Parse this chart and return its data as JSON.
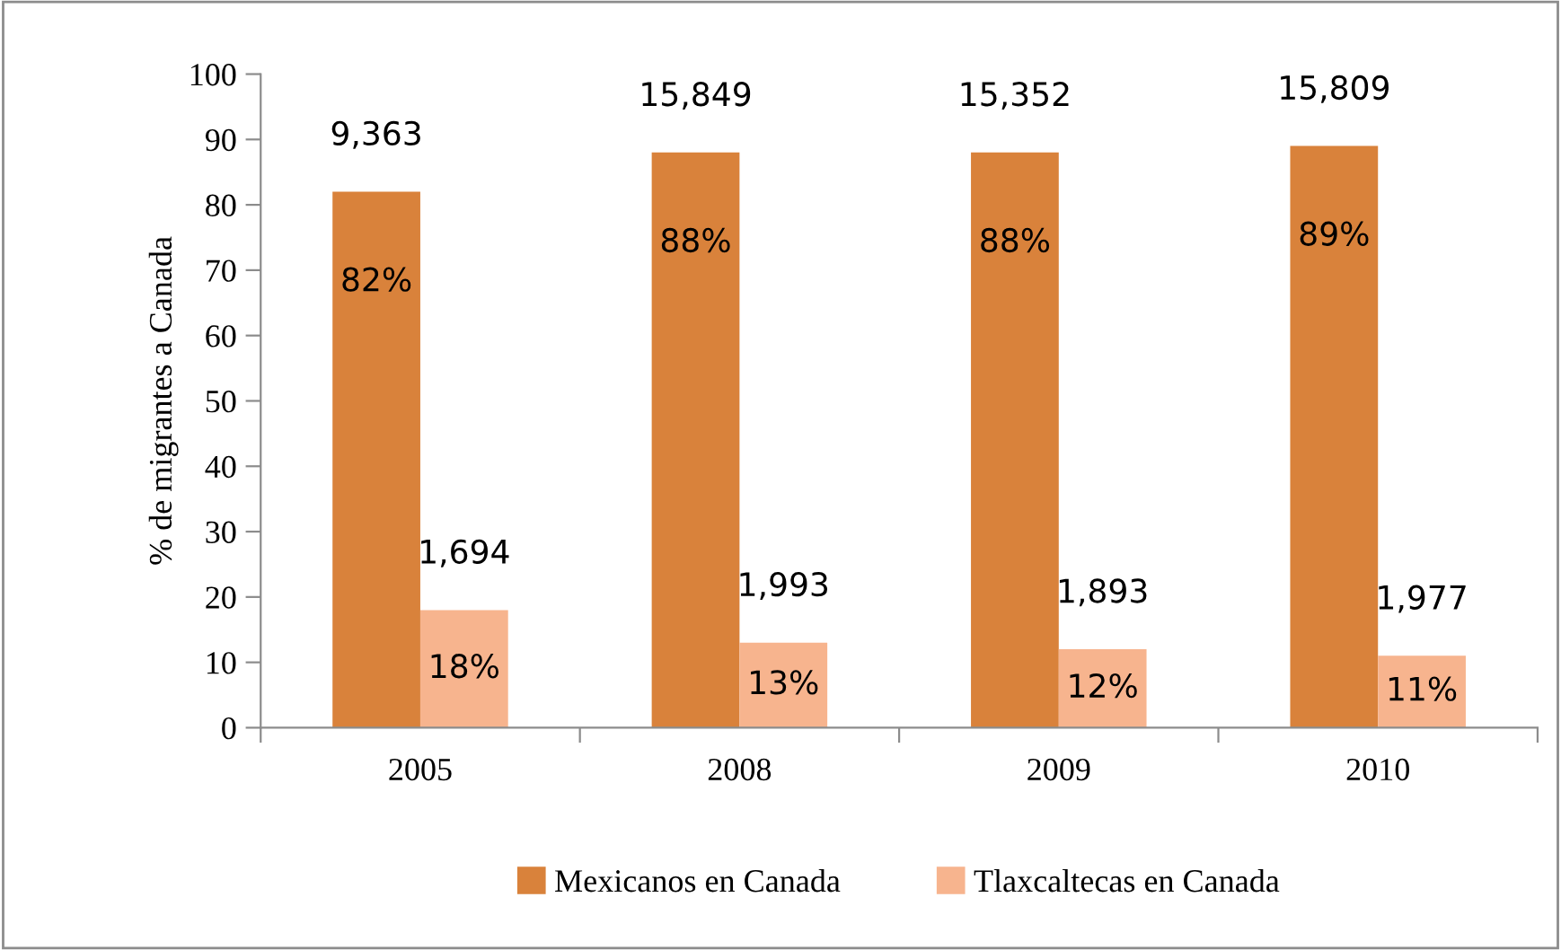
{
  "chart_data": {
    "type": "bar",
    "ylabel": "% de migrantes a Canada",
    "categories": [
      "2005",
      "2008",
      "2009",
      "2010"
    ],
    "series": [
      {
        "name": "Mexicanos en Canada",
        "color": "#d9823b",
        "values": [
          82,
          88,
          88,
          89
        ],
        "value_labels": [
          "82%",
          "88%",
          "88%",
          "89%"
        ]
      },
      {
        "name": "Tlaxcaltecas en Canada",
        "color": "#f7b48e",
        "values": [
          18,
          13,
          12,
          11
        ],
        "value_labels": [
          "18%",
          "13%",
          "12%",
          "11%"
        ]
      }
    ],
    "annotations": [
      {
        "text": "9,363",
        "x": "2005",
        "y": 82
      },
      {
        "text": "15,849",
        "x": "2008",
        "y": 88
      },
      {
        "text": "15,352",
        "x": "2009",
        "y": 88
      },
      {
        "text": "15,809",
        "x": "2010",
        "y": 89
      },
      {
        "text": "1,694",
        "x": "2005",
        "y": 18
      },
      {
        "text": "1,993",
        "x": "2008",
        "y": 13
      },
      {
        "text": "1,893",
        "x": "2009",
        "y": 12
      },
      {
        "text": "1,977",
        "x": "2010",
        "y": 11
      }
    ],
    "ylim": [
      0,
      100
    ],
    "yticks": [
      0,
      10,
      20,
      30,
      40,
      50,
      60,
      70,
      80,
      90,
      100
    ],
    "grid": false,
    "legend": "bottom"
  }
}
